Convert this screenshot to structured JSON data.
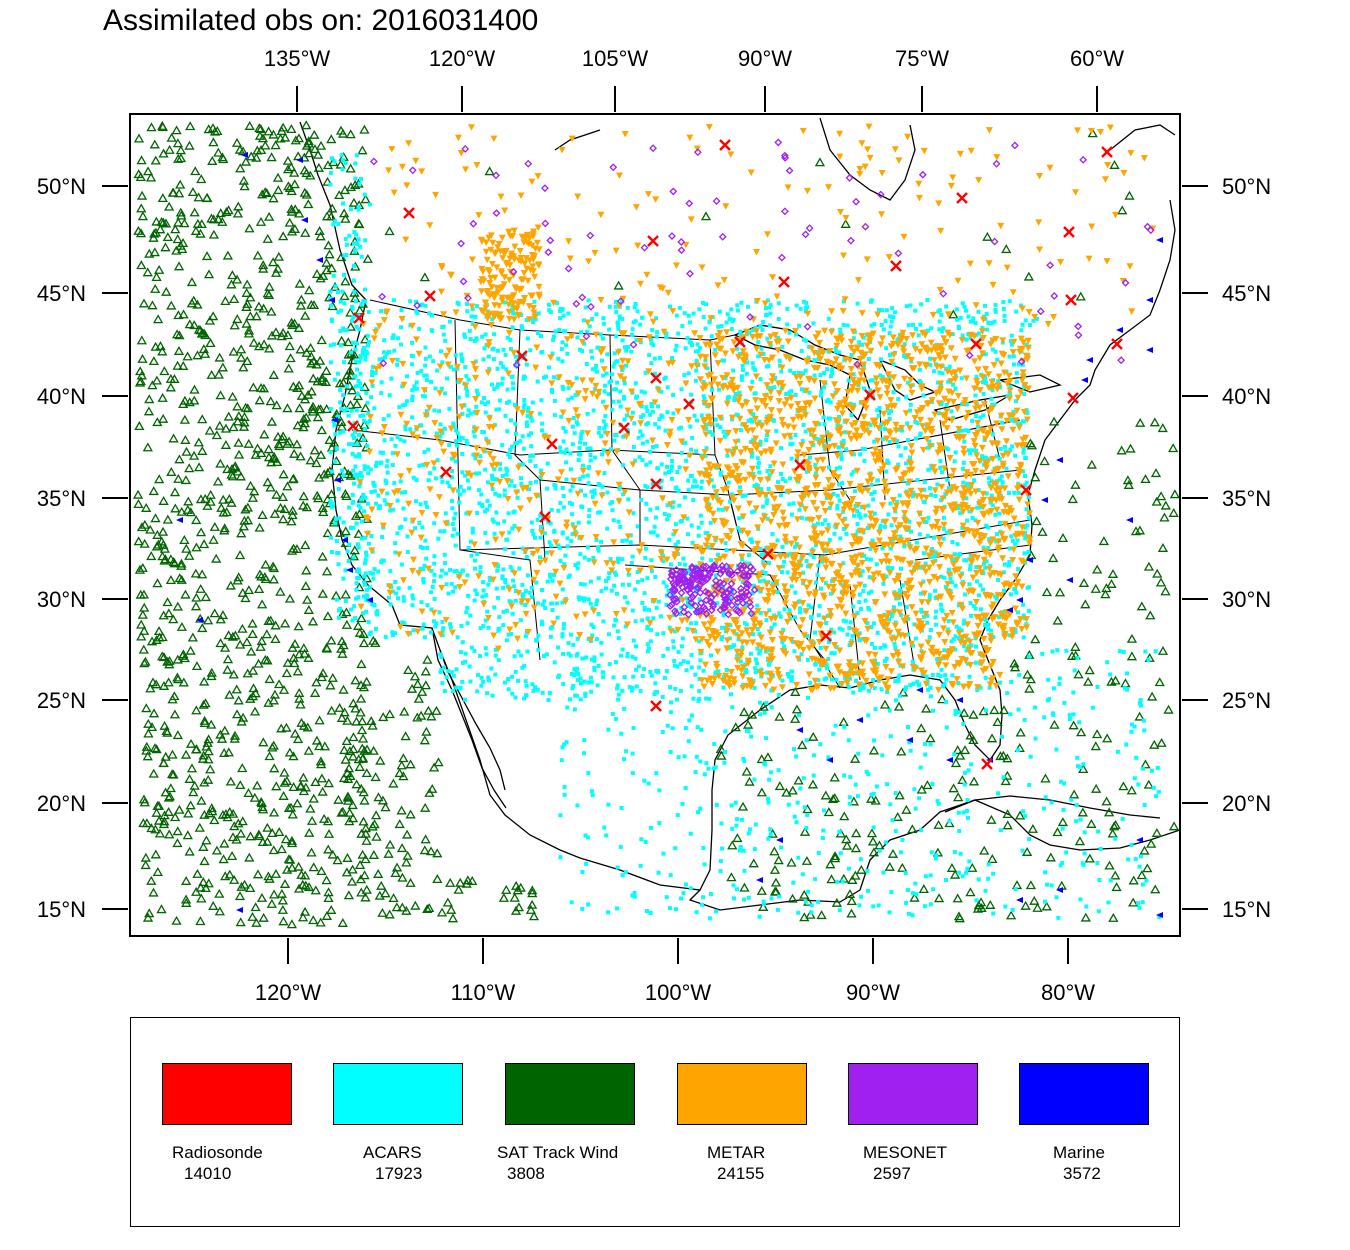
{
  "title": "Assimilated obs on: 2016031400",
  "axes": {
    "top_lon_labels": [
      "135°W",
      "120°W",
      "105°W",
      "90°W",
      "75°W",
      "60°W"
    ],
    "bottom_lon_labels": [
      "120°W",
      "110°W",
      "100°W",
      "90°W",
      "80°W"
    ],
    "lat_labels": [
      "50°N",
      "45°N",
      "40°N",
      "35°N",
      "30°N",
      "25°N",
      "20°N",
      "15°N"
    ]
  },
  "legend": {
    "items": [
      {
        "label": "Radiosonde",
        "count": "14010",
        "color": "#ff0000"
      },
      {
        "label": "ACARS",
        "count": "17923",
        "color": "#00ffff"
      },
      {
        "label": "SAT Track Wind",
        "count": "3808",
        "color": "#006400"
      },
      {
        "label": "METAR",
        "count": "24155",
        "color": "#ffa500"
      },
      {
        "label": "MESONET",
        "count": "2597",
        "color": "#a020f0"
      },
      {
        "label": "Marine",
        "count": "3572",
        "color": "#0000ff"
      }
    ]
  },
  "map_data": {
    "projection": "Lambert conformal (CONUS domain)",
    "lat_range": [
      14,
      53
    ],
    "lon_range": [
      -128,
      -65
    ],
    "series": [
      {
        "name": "Radiosonde",
        "marker": "x",
        "color": "#ff0000"
      },
      {
        "name": "ACARS",
        "marker": "square",
        "color": "#00ffff"
      },
      {
        "name": "SAT Track Wind",
        "marker": "triangle-up",
        "color": "#006400"
      },
      {
        "name": "METAR",
        "marker": "triangle-down",
        "color": "#ffa500"
      },
      {
        "name": "MESONET",
        "marker": "diamond",
        "color": "#a020f0"
      },
      {
        "name": "Marine",
        "marker": "triangle-left",
        "color": "#0000ff"
      }
    ]
  }
}
